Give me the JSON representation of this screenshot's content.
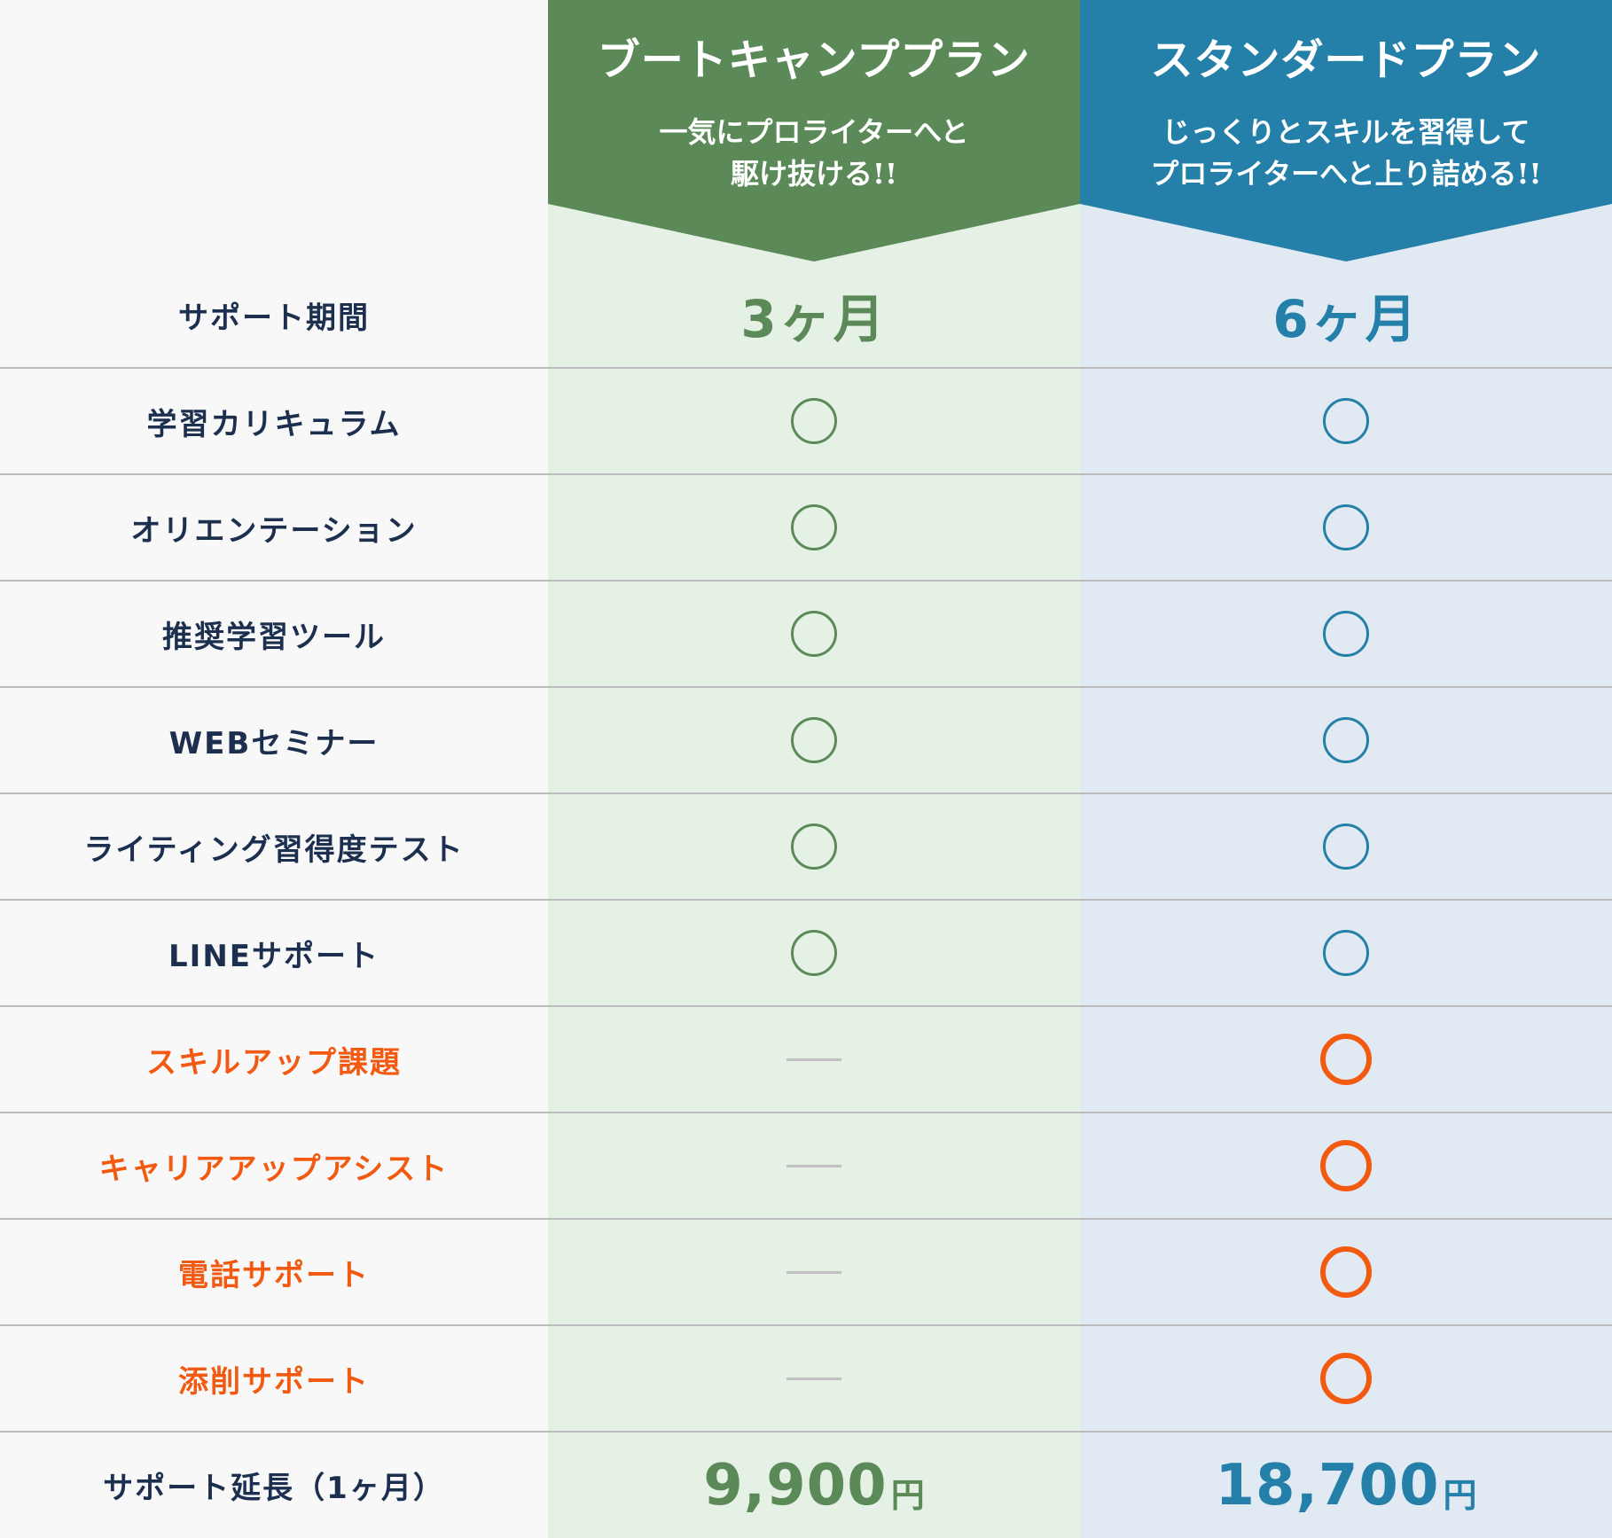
{
  "colors": {
    "bootcamp": "#5b8a58",
    "standard": "#2480a9",
    "highlight": "#f25a12",
    "label": "#1c2f4f"
  },
  "plans": {
    "bootcamp": {
      "title": "ブートキャンププラン",
      "desc_line1": "一気にプロライターへと",
      "desc_line2": "駆け抜ける!!"
    },
    "standard": {
      "title": "スタンダードプラン",
      "desc_line1": "じっくりとスキルを習得して",
      "desc_line2": "プロライターへと上り詰める!!"
    }
  },
  "rows": [
    {
      "label": "サポート期間",
      "boot": "3ヶ月",
      "std": "6ヶ月"
    },
    {
      "label": "学習カリキュラム",
      "boot": "circle",
      "std": "circle"
    },
    {
      "label": "オリエンテーション",
      "boot": "circle",
      "std": "circle"
    },
    {
      "label": "推奨学習ツール",
      "boot": "circle",
      "std": "circle"
    },
    {
      "label": "WEBセミナー",
      "boot": "circle",
      "std": "circle"
    },
    {
      "label": "ライティング習得度テスト",
      "boot": "circle",
      "std": "circle"
    },
    {
      "label": "LINEサポート",
      "boot": "circle",
      "std": "circle"
    },
    {
      "label": "スキルアップ課題",
      "highlight": true,
      "boot": "dash",
      "std": "circle"
    },
    {
      "label": "キャリアアップアシスト",
      "highlight": true,
      "boot": "dash",
      "std": "circle"
    },
    {
      "label": "電話サポート",
      "highlight": true,
      "boot": "dash",
      "std": "circle"
    },
    {
      "label": "添削サポート",
      "highlight": true,
      "boot": "dash",
      "std": "circle"
    }
  ],
  "extension": {
    "label": "サポート延長（1ヶ月）",
    "boot_price": "9,900",
    "std_price": "18,700",
    "unit": "円"
  }
}
